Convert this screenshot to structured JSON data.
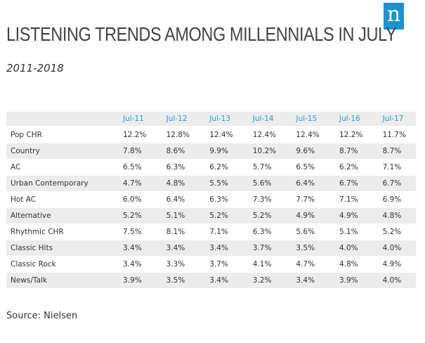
{
  "brand": {
    "logo_letter": "n",
    "accent_color": "#1c93d1"
  },
  "title": "LISTENING TRENDS AMONG MILLENNIALS IN JULY",
  "subtitle": "2011-2018",
  "table": {
    "columns": [
      "Jul-11",
      "Jul-12",
      "Jul-13",
      "Jul-14",
      "Jul-15",
      "Jul-16",
      "Jul-17"
    ],
    "rows": [
      {
        "format": "Pop CHR",
        "values": [
          "12.2%",
          "12.8%",
          "12.4%",
          "12.4%",
          "12.4%",
          "12.2%",
          "11.7%"
        ]
      },
      {
        "format": "Country",
        "values": [
          "7.8%",
          "8.6%",
          "9.9%",
          "10.2%",
          "9.6%",
          "8.7%",
          "8.7%"
        ]
      },
      {
        "format": "AC",
        "values": [
          "6.5%",
          "6.3%",
          "6.2%",
          "5.7%",
          "6.5%",
          "6.2%",
          "7.1%"
        ]
      },
      {
        "format": "Urban Contemporary",
        "values": [
          "4.7%",
          "4.8%",
          "5.5%",
          "5.6%",
          "6.4%",
          "6.7%",
          "6.7%"
        ]
      },
      {
        "format": "Hot AC",
        "values": [
          "6.0%",
          "6.4%",
          "6.3%",
          "7.3%",
          "7.7%",
          "7.1%",
          "6.9%"
        ]
      },
      {
        "format": "Alternative",
        "values": [
          "5.2%",
          "5.1%",
          "5.2%",
          "5.2%",
          "4.9%",
          "4.9%",
          "4.8%"
        ]
      },
      {
        "format": "Rhythmic CHR",
        "values": [
          "7.5%",
          "8.1%",
          "7.1%",
          "6.3%",
          "5.6%",
          "5.1%",
          "5.2%"
        ]
      },
      {
        "format": "Classic Hits",
        "values": [
          "3.4%",
          "3.4%",
          "3.4%",
          "3.7%",
          "3.5%",
          "4.0%",
          "4.0%"
        ]
      },
      {
        "format": "Classic Rock",
        "values": [
          "3.4%",
          "3.3%",
          "3.7%",
          "4.1%",
          "4.7%",
          "4.8%",
          "4.9%"
        ]
      },
      {
        "format": "News/Talk",
        "values": [
          "3.9%",
          "3.5%",
          "3.4%",
          "3.2%",
          "3.4%",
          "3.9%",
          "4.0%"
        ]
      }
    ]
  },
  "source": "Source: Nielsen"
}
